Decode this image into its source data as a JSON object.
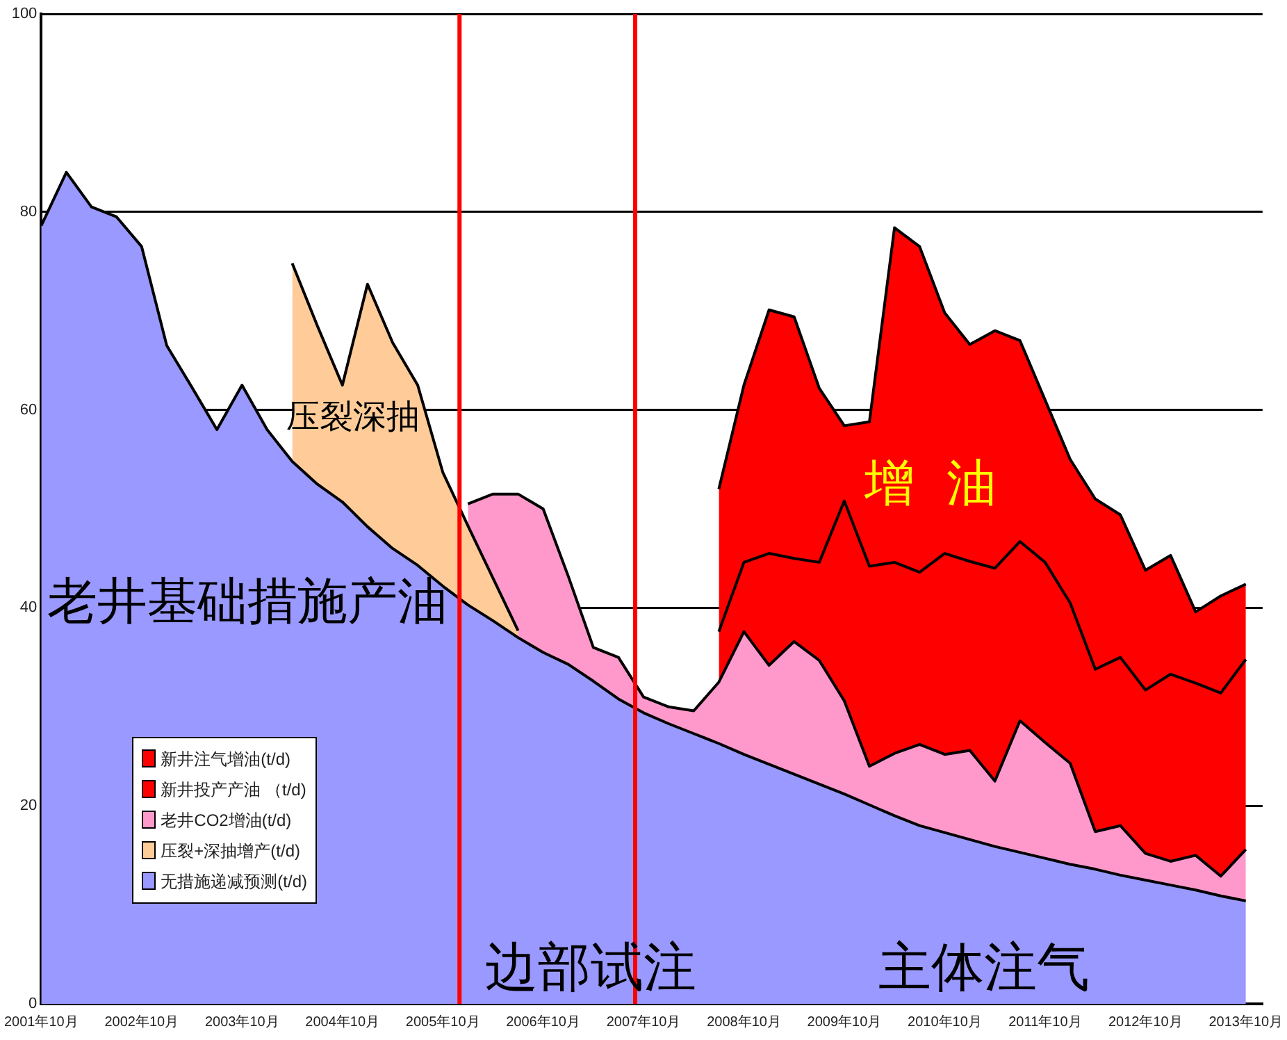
{
  "chart_data": {
    "type": "area",
    "stacked": true,
    "x": [
      "2001-10",
      "2002-01",
      "2002-04",
      "2002-07",
      "2002-10",
      "2003-01",
      "2003-04",
      "2003-07",
      "2003-10",
      "2004-01",
      "2004-04",
      "2004-07",
      "2004-10",
      "2005-01",
      "2005-04",
      "2005-07",
      "2005-10",
      "2006-01",
      "2006-04",
      "2006-07",
      "2006-10",
      "2007-01",
      "2007-04",
      "2007-07",
      "2007-10",
      "2008-01",
      "2008-04",
      "2008-07",
      "2008-10",
      "2009-01",
      "2009-04",
      "2009-07",
      "2009-10",
      "2010-01",
      "2010-04",
      "2010-07",
      "2010-10",
      "2011-01",
      "2011-04",
      "2011-07",
      "2011-10",
      "2012-01",
      "2012-04",
      "2012-07",
      "2012-10",
      "2013-01",
      "2013-04",
      "2013-07",
      "2013-10"
    ],
    "series": [
      {
        "name": "无措施递减预测(t/d)",
        "color": "#9999ff",
        "values": [
          78.6,
          84,
          80.5,
          79.5,
          76.5,
          66.5,
          62.3,
          58,
          62.5,
          58,
          54.8,
          52.5,
          50.7,
          48.2,
          46.0,
          44.3,
          42.2,
          40.3,
          38.7,
          37.0,
          35.5,
          34.3,
          32.6,
          30.8,
          29.4,
          28.3,
          27.3,
          26.3,
          25.2,
          24.2,
          23.2,
          22.2,
          21.2,
          20.1,
          19.0,
          18.0,
          17.3,
          16.6,
          15.9,
          15.3,
          14.7,
          14.1,
          13.6,
          13.0,
          12.5,
          12.0,
          11.5,
          10.9,
          10.4
        ]
      },
      {
        "name": "压裂+深抽增产(t/d)",
        "color": "#ffcc99",
        "values": [
          null,
          null,
          null,
          null,
          null,
          null,
          null,
          null,
          null,
          null,
          20,
          16,
          11.8,
          24.5,
          20.8,
          18.2,
          11.5,
          8,
          4.3,
          0.7,
          null,
          null,
          null,
          null,
          null,
          null,
          null,
          null,
          null,
          null,
          null,
          null,
          null,
          null,
          null,
          null,
          null,
          null,
          null,
          null,
          null,
          null,
          null,
          null,
          null,
          null,
          null,
          null,
          null
        ]
      },
      {
        "name": "老井CO2增油(t/d)",
        "color": "#ff99cc",
        "values": [
          null,
          null,
          null,
          null,
          null,
          null,
          null,
          null,
          null,
          null,
          null,
          null,
          null,
          null,
          null,
          null,
          null,
          2.2,
          8.5,
          13.8,
          14.5,
          8.9,
          3.4,
          4.2,
          1.6,
          1.7,
          2.3,
          6.2,
          12.4,
          10,
          13.4,
          12.5,
          9.4,
          3.9,
          6.3,
          8.2,
          7.9,
          9,
          6.6,
          13.3,
          11.7,
          10.2,
          3.8,
          5,
          2.7,
          2.4,
          3.5,
          2,
          5.2
        ]
      },
      {
        "name": "新井投产产油 （t/d)",
        "color": "#ff0000",
        "values": [
          null,
          null,
          null,
          null,
          null,
          null,
          null,
          null,
          null,
          null,
          null,
          null,
          null,
          null,
          null,
          null,
          null,
          null,
          null,
          null,
          null,
          null,
          null,
          null,
          null,
          null,
          null,
          5.1,
          7,
          11.3,
          8.4,
          9.9,
          20.2,
          20.2,
          19.3,
          17.4,
          20.3,
          19.1,
          21.5,
          18.1,
          18.2,
          16.2,
          16.4,
          17,
          16.5,
          18.9,
          17.4,
          18.5,
          19.2
        ]
      },
      {
        "name": "新井注气增油(t/d)",
        "color": "#ff0000",
        "values": [
          null,
          null,
          null,
          null,
          null,
          null,
          null,
          null,
          null,
          null,
          null,
          null,
          null,
          null,
          null,
          null,
          null,
          null,
          null,
          null,
          null,
          null,
          null,
          null,
          null,
          null,
          null,
          14.4,
          17.9,
          24.6,
          24.4,
          17.6,
          7.6,
          14.6,
          33.8,
          32.9,
          24.3,
          21.9,
          24,
          20.3,
          16.4,
          14.5,
          17.2,
          14.4,
          12.1,
          12,
          7.2,
          9.8,
          7.6
        ]
      }
    ],
    "xlim": [
      "2001-10",
      "2013-12"
    ],
    "xticks": [
      {
        "value": "2001-10",
        "label": "2001年10月"
      },
      {
        "value": "2002-10",
        "label": "2002年10月"
      },
      {
        "value": "2003-10",
        "label": "2003年10月"
      },
      {
        "value": "2004-10",
        "label": "2004年10月"
      },
      {
        "value": "2005-10",
        "label": "2005年10月"
      },
      {
        "value": "2006-10",
        "label": "2006年10月"
      },
      {
        "value": "2007-10",
        "label": "2007年10月"
      },
      {
        "value": "2008-10",
        "label": "2008年10月"
      },
      {
        "value": "2009-10",
        "label": "2009年10月"
      },
      {
        "value": "2010-10",
        "label": "2010年10月"
      },
      {
        "value": "2011-10",
        "label": "2011年10月"
      },
      {
        "value": "2012-10",
        "label": "2012年10月"
      },
      {
        "value": "2013-10",
        "label": "2013年10月"
      }
    ],
    "ylim": [
      0,
      100
    ],
    "yticks": [
      0,
      20,
      40,
      60,
      80,
      100
    ],
    "grid": "y",
    "legend": "bottom left",
    "ref_lines": [
      {
        "axis": "x",
        "value": "2005-12",
        "color": "#ff0000"
      },
      {
        "axis": "x",
        "value": "2007-09",
        "color": "#ff0000"
      }
    ],
    "annotations": [
      "老井基础措施产油",
      "压裂深抽",
      "增  油",
      "边部试注",
      "主体注气"
    ]
  }
}
